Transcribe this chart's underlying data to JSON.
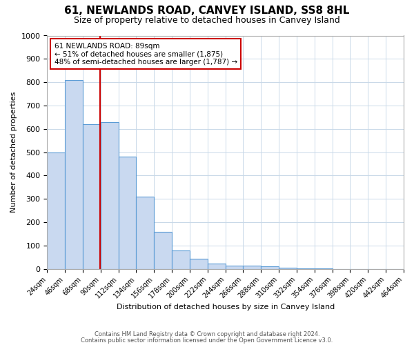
{
  "title": "61, NEWLANDS ROAD, CANVEY ISLAND, SS8 8HL",
  "subtitle": "Size of property relative to detached houses in Canvey Island",
  "xlabel": "Distribution of detached houses by size in Canvey Island",
  "ylabel": "Number of detached properties",
  "bin_edges": [
    24,
    46,
    68,
    90,
    112,
    134,
    156,
    178,
    200,
    222,
    244,
    266,
    288,
    310,
    332,
    354,
    376,
    398,
    420,
    442,
    464
  ],
  "counts": [
    500,
    810,
    620,
    630,
    480,
    310,
    160,
    80,
    45,
    22,
    15,
    15,
    10,
    5,
    3,
    2,
    0,
    0,
    0,
    0
  ],
  "bar_color": "#c9d9f0",
  "bar_edge_color": "#5b9bd5",
  "property_size": 89,
  "vline_color": "#cc0000",
  "annotation_text": "61 NEWLANDS ROAD: 89sqm\n← 51% of detached houses are smaller (1,875)\n48% of semi-detached houses are larger (1,787) →",
  "annotation_box_color": "#ffffff",
  "annotation_box_edge": "#cc0000",
  "ylim": [
    0,
    1000
  ],
  "ytick_interval": 100,
  "footer1": "Contains HM Land Registry data © Crown copyright and database right 2024.",
  "footer2": "Contains public sector information licensed under the Open Government Licence v3.0.",
  "bg_color": "#ffffff",
  "grid_color": "#c8d8e8",
  "title_fontsize": 11,
  "subtitle_fontsize": 9
}
